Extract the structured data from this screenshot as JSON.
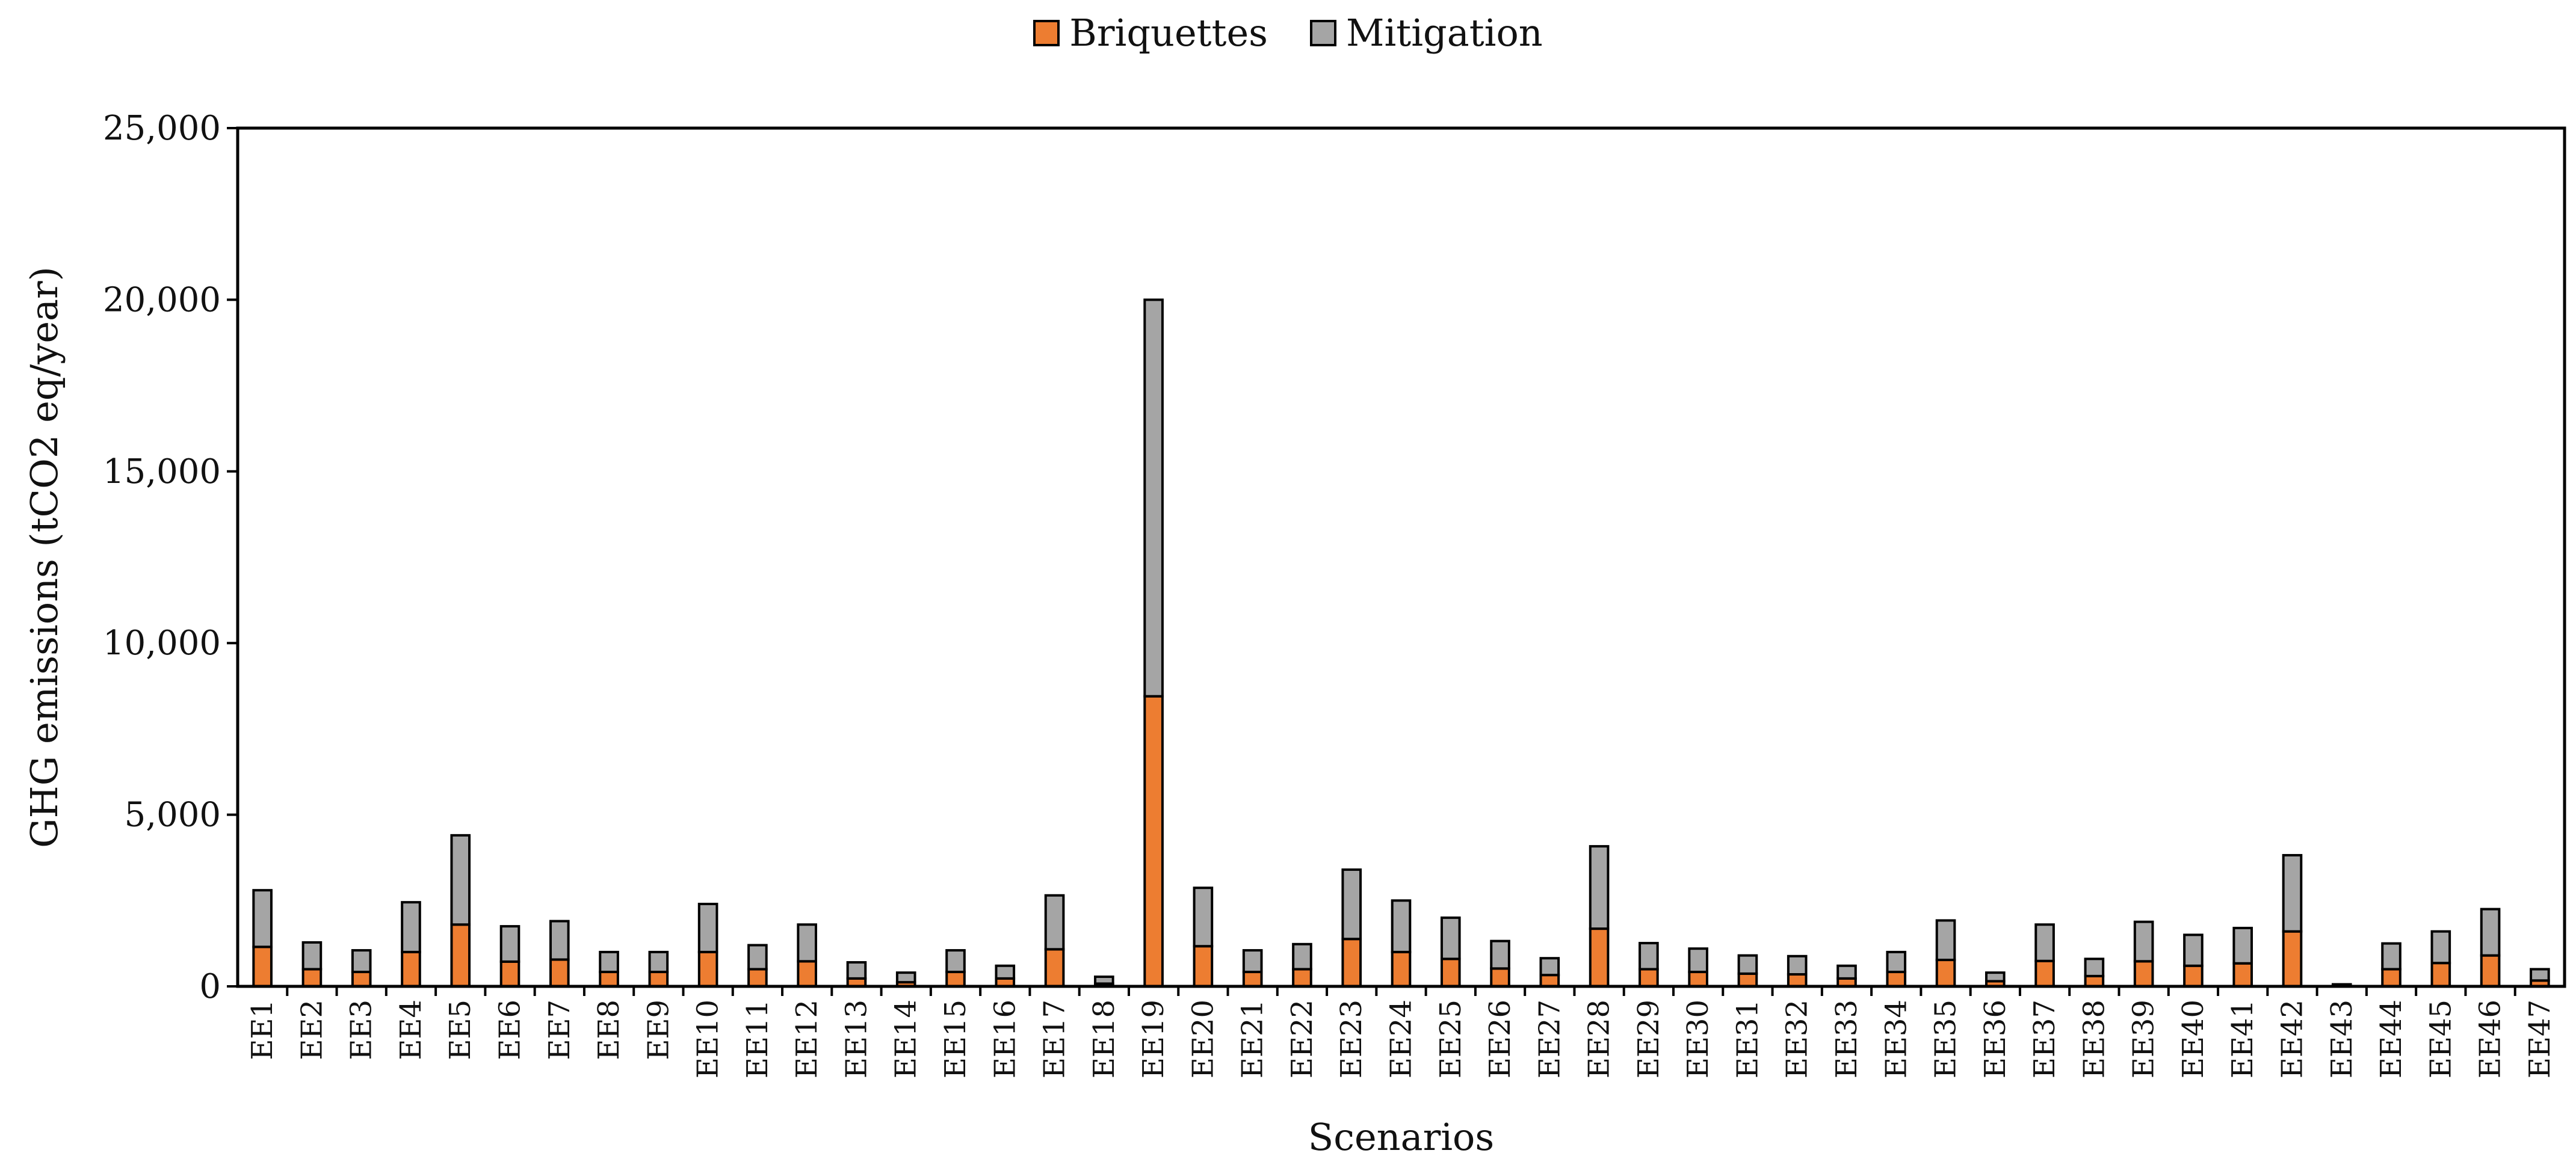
{
  "chart_data": {
    "type": "bar",
    "stacked": true,
    "categories": [
      "EE1",
      "EE2",
      "EE3",
      "EE4",
      "EE5",
      "EE6",
      "EE7",
      "EE8",
      "EE9",
      "EE10",
      "EE11",
      "EE12",
      "EE13",
      "EE14",
      "EE15",
      "EE16",
      "EE17",
      "EE18",
      "EE19",
      "EE20",
      "EE21",
      "EE22",
      "EE23",
      "EE24",
      "EE25",
      "EE26",
      "EE27",
      "EE28",
      "EE29",
      "EE30",
      "EE31",
      "EE32",
      "EE33",
      "EE34",
      "EE35",
      "EE36",
      "EE37",
      "EE38",
      "EE39",
      "EE40",
      "EE41",
      "EE42",
      "EE43",
      "EE44",
      "EE45",
      "EE46",
      "EE47"
    ],
    "series": [
      {
        "name": "Briquettes",
        "color": "#ed7d31",
        "values": [
          1150,
          500,
          420,
          1000,
          1800,
          720,
          780,
          420,
          420,
          1000,
          500,
          730,
          230,
          120,
          420,
          230,
          1080,
          80,
          8450,
          1170,
          420,
          500,
          1380,
          1000,
          800,
          520,
          330,
          1680,
          500,
          420,
          370,
          350,
          230,
          420,
          770,
          150,
          740,
          300,
          730,
          600,
          670,
          1600,
          20,
          500,
          680,
          900,
          170
        ]
      },
      {
        "name": "Mitigation",
        "color": "#a5a5a5",
        "values": [
          1650,
          780,
          630,
          1450,
          2600,
          1030,
          1120,
          580,
          580,
          1400,
          700,
          1070,
          470,
          280,
          630,
          370,
          1570,
          200,
          11550,
          1700,
          630,
          730,
          2020,
          1500,
          1200,
          800,
          490,
          2400,
          760,
          680,
          530,
          530,
          370,
          580,
          1150,
          250,
          1060,
          500,
          1150,
          900,
          1030,
          2220,
          40,
          750,
          920,
          1350,
          330
        ]
      }
    ],
    "xlabel": "Scenarios",
    "ylabel": "GHG emissions  (tCO2 eq/year)",
    "ylim": [
      0,
      25000
    ],
    "yticks": [
      0,
      5000,
      10000,
      15000,
      20000,
      25000
    ],
    "ytick_labels": [
      "0",
      "5,000",
      "10,000",
      "15,000",
      "20,000",
      "25,000"
    ],
    "legend_position": "top-center",
    "grid": false
  }
}
